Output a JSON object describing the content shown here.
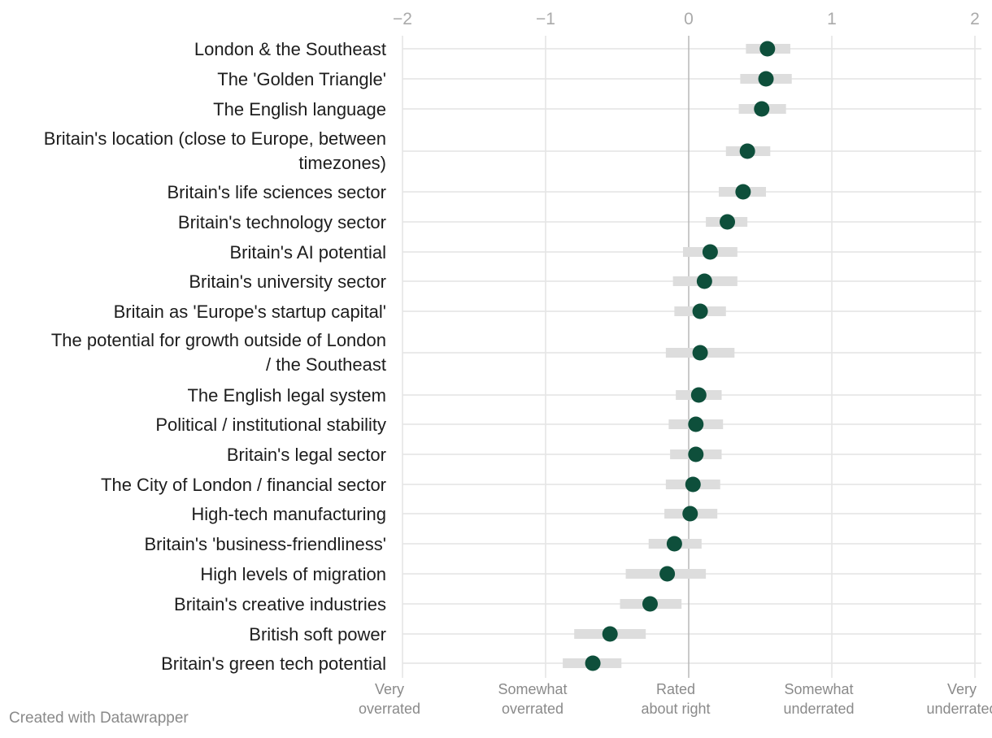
{
  "chart_data": {
    "type": "dot-range",
    "xlim": [
      -2,
      2
    ],
    "x_ticks": [
      "−2",
      "−1",
      "0",
      "1",
      "2"
    ],
    "x_tick_values": [
      -2,
      -1,
      0,
      1,
      2
    ],
    "bottom_labels": [
      {
        "value": -2,
        "lines": [
          "Very",
          "overrated"
        ]
      },
      {
        "value": -1,
        "lines": [
          "Somewhat",
          "overrated"
        ]
      },
      {
        "value": 0,
        "lines": [
          "Rated",
          "about right"
        ]
      },
      {
        "value": 1,
        "lines": [
          "Somewhat",
          "underrated"
        ]
      },
      {
        "value": 2,
        "lines": [
          "Very",
          "underrated"
        ]
      }
    ],
    "items": [
      {
        "lines": [
          "London & the Southeast"
        ],
        "value": 0.55,
        "low": 0.4,
        "high": 0.71
      },
      {
        "lines": [
          "The 'Golden Triangle'"
        ],
        "value": 0.54,
        "low": 0.36,
        "high": 0.72
      },
      {
        "lines": [
          "The English language"
        ],
        "value": 0.51,
        "low": 0.35,
        "high": 0.68
      },
      {
        "lines": [
          "Britain's location (close to Europe, between",
          "timezones)"
        ],
        "value": 0.41,
        "low": 0.26,
        "high": 0.57
      },
      {
        "lines": [
          "Britain's life sciences sector"
        ],
        "value": 0.38,
        "low": 0.21,
        "high": 0.54
      },
      {
        "lines": [
          "Britain's technology sector"
        ],
        "value": 0.27,
        "low": 0.12,
        "high": 0.41
      },
      {
        "lines": [
          "Britain's AI potential"
        ],
        "value": 0.15,
        "low": -0.04,
        "high": 0.34
      },
      {
        "lines": [
          "Britain's university sector"
        ],
        "value": 0.11,
        "low": -0.11,
        "high": 0.34
      },
      {
        "lines": [
          "Britain as 'Europe's startup capital'"
        ],
        "value": 0.08,
        "low": -0.1,
        "high": 0.26
      },
      {
        "lines": [
          "The potential for growth outside of London",
          "/ the Southeast"
        ],
        "value": 0.08,
        "low": -0.16,
        "high": 0.32
      },
      {
        "lines": [
          "The English legal system"
        ],
        "value": 0.07,
        "low": -0.09,
        "high": 0.23
      },
      {
        "lines": [
          "Political / institutional stability"
        ],
        "value": 0.05,
        "low": -0.14,
        "high": 0.24
      },
      {
        "lines": [
          "Britain's legal sector"
        ],
        "value": 0.05,
        "low": -0.13,
        "high": 0.23
      },
      {
        "lines": [
          "The City of London / financial sector"
        ],
        "value": 0.03,
        "low": -0.16,
        "high": 0.22
      },
      {
        "lines": [
          "High-tech manufacturing"
        ],
        "value": 0.01,
        "low": -0.17,
        "high": 0.2
      },
      {
        "lines": [
          "Britain's 'business-friendliness'"
        ],
        "value": -0.1,
        "low": -0.28,
        "high": 0.09
      },
      {
        "lines": [
          "High levels of migration"
        ],
        "value": -0.15,
        "low": -0.44,
        "high": 0.12
      },
      {
        "lines": [
          "Britain's creative industries"
        ],
        "value": -0.27,
        "low": -0.48,
        "high": -0.05
      },
      {
        "lines": [
          "British soft power"
        ],
        "value": -0.55,
        "low": -0.8,
        "high": -0.3
      },
      {
        "lines": [
          "Britain's green tech potential"
        ],
        "value": -0.67,
        "low": -0.88,
        "high": -0.47
      }
    ],
    "colors": {
      "dot": "#0e4f3b",
      "range": "#dddddd",
      "grid": "#e4e4e4",
      "zero": "#b8b8b8"
    }
  },
  "credit": "Created with Datawrapper"
}
